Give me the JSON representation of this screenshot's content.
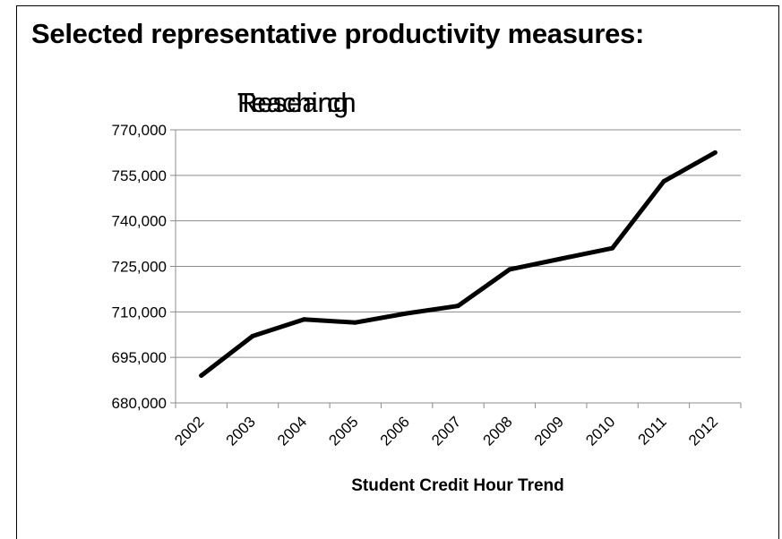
{
  "slide": {
    "heading": "Selected representative productivity measures:",
    "overlapping_titles": [
      "Research",
      "Teaching"
    ]
  },
  "chart_data": {
    "type": "line",
    "title": "",
    "xlabel": "Student Credit Hour Trend",
    "ylabel": "",
    "categories": [
      "2002",
      "2003",
      "2004",
      "2005",
      "2006",
      "2007",
      "2008",
      "2009",
      "2010",
      "2011",
      "2012"
    ],
    "values": [
      689000,
      702000,
      707500,
      706500,
      709500,
      712000,
      724000,
      727500,
      731000,
      753000,
      762500
    ],
    "ylim": [
      680000,
      770000
    ],
    "yticks": [
      680000,
      695000,
      710000,
      725000,
      740000,
      755000,
      770000
    ],
    "ytick_labels": [
      "680,000",
      "695,000",
      "710,000",
      "725,000",
      "740,000",
      "755,000",
      "770,000"
    ],
    "grid": true,
    "legend": "none",
    "line_color": "#000000"
  }
}
